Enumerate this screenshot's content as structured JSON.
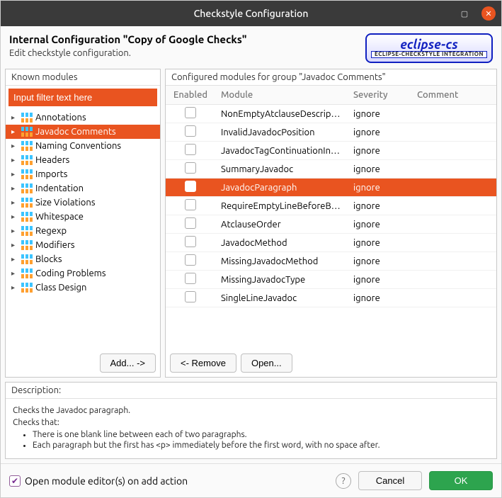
{
  "colors": {
    "accent": "#e95420",
    "ok": "#2da44e",
    "titlebar": "#3a3a3a"
  },
  "window": {
    "title": "Checkstyle Configuration"
  },
  "header": {
    "title": "Internal Configuration \"Copy of Google Checks\"",
    "subtitle": "Edit checkstyle configuration.",
    "logo_main": "eclipse-cs",
    "logo_sub": "ECLIPSE-CHECKSTYLE INTEGRATION"
  },
  "left_panel": {
    "title": "Known modules",
    "filter_placeholder": "Input filter text here",
    "add_label": "Add... ->",
    "items": [
      {
        "label": "Annotations",
        "selected": false
      },
      {
        "label": "Javadoc Comments",
        "selected": true
      },
      {
        "label": "Naming Conventions",
        "selected": false
      },
      {
        "label": "Headers",
        "selected": false
      },
      {
        "label": "Imports",
        "selected": false
      },
      {
        "label": "Indentation",
        "selected": false
      },
      {
        "label": "Size Violations",
        "selected": false
      },
      {
        "label": "Whitespace",
        "selected": false
      },
      {
        "label": "Regexp",
        "selected": false
      },
      {
        "label": "Modifiers",
        "selected": false
      },
      {
        "label": "Blocks",
        "selected": false
      },
      {
        "label": "Coding Problems",
        "selected": false
      },
      {
        "label": "Class Design",
        "selected": false
      }
    ]
  },
  "right_panel": {
    "title": "Configured modules for group \"Javadoc Comments\"",
    "columns": {
      "enabled": "Enabled",
      "module": "Module",
      "severity": "Severity",
      "comment": "Comment"
    },
    "remove_label": "<- Remove",
    "open_label": "Open...",
    "rows": [
      {
        "enabled": false,
        "module": "NonEmptyAtclauseDescription",
        "severity": "ignore",
        "comment": "",
        "selected": false
      },
      {
        "enabled": false,
        "module": "InvalidJavadocPosition",
        "severity": "ignore",
        "comment": "",
        "selected": false
      },
      {
        "enabled": false,
        "module": "JavadocTagContinuationIndentation",
        "severity": "ignore",
        "comment": "",
        "selected": false
      },
      {
        "enabled": false,
        "module": "SummaryJavadoc",
        "severity": "ignore",
        "comment": "",
        "selected": false
      },
      {
        "enabled": false,
        "module": "JavadocParagraph",
        "severity": "ignore",
        "comment": "",
        "selected": true
      },
      {
        "enabled": false,
        "module": "RequireEmptyLineBeforeBlockTagGroup",
        "severity": "ignore",
        "comment": "",
        "selected": false
      },
      {
        "enabled": false,
        "module": "AtclauseOrder",
        "severity": "ignore",
        "comment": "",
        "selected": false
      },
      {
        "enabled": false,
        "module": "JavadocMethod",
        "severity": "ignore",
        "comment": "",
        "selected": false
      },
      {
        "enabled": false,
        "module": "MissingJavadocMethod",
        "severity": "ignore",
        "comment": "",
        "selected": false
      },
      {
        "enabled": false,
        "module": "MissingJavadocType",
        "severity": "ignore",
        "comment": "",
        "selected": false
      },
      {
        "enabled": false,
        "module": "SingleLineJavadoc",
        "severity": "ignore",
        "comment": "",
        "selected": false
      }
    ]
  },
  "description": {
    "title": "Description:",
    "line1": "Checks the Javadoc paragraph.",
    "line2": "Checks that:",
    "bullets": [
      "There is one blank line between each of two paragraphs.",
      "Each paragraph but the first has <p> immediately before the first word, with no space after."
    ]
  },
  "footer": {
    "checkbox_label": "Open module editor(s) on add action",
    "checkbox_checked": true,
    "cancel": "Cancel",
    "ok": "OK"
  }
}
